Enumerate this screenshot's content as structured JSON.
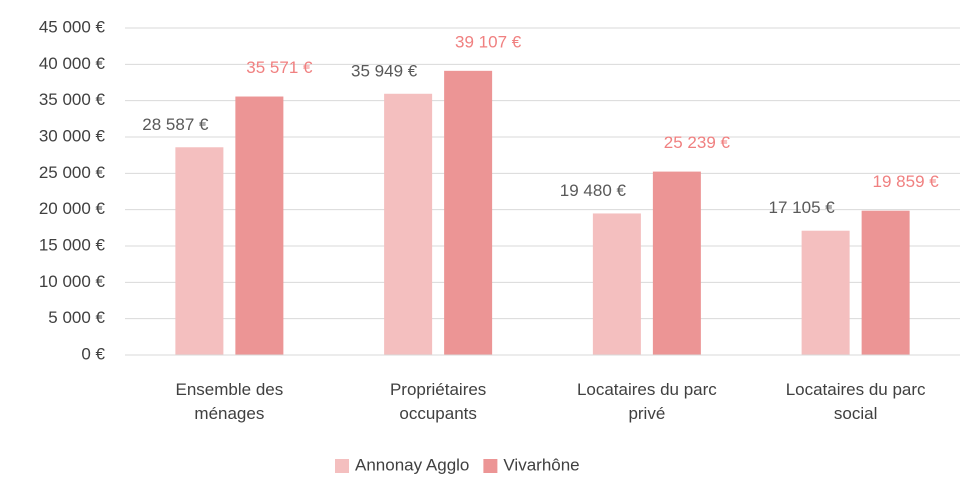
{
  "chart_data": {
    "type": "bar",
    "categories": [
      "Ensemble des ménages",
      "Propriétaires occupants",
      "Locataires du parc privé",
      "Locataires du parc social"
    ],
    "series": [
      {
        "name": "Annonay Agglo",
        "color": "#f4bfbf",
        "label_color": "#595959",
        "values": [
          28587,
          35949,
          19480,
          17105
        ],
        "value_labels": [
          "28 587 €",
          "35 949 €",
          "19 480 €",
          "17 105 €"
        ]
      },
      {
        "name": "Vivarhône",
        "color": "#ec9595",
        "label_color": "#f08080",
        "values": [
          35571,
          39107,
          25239,
          19859
        ],
        "value_labels": [
          "35 571 €",
          "39 107 €",
          "25 239 €",
          "19 859 €"
        ]
      }
    ],
    "ylim": [
      0,
      45000
    ],
    "yticks": [
      {
        "value": 0,
        "label": "0 €"
      },
      {
        "value": 5000,
        "label": "5 000 €"
      },
      {
        "value": 10000,
        "label": "10 000 €"
      },
      {
        "value": 15000,
        "label": "15 000 €"
      },
      {
        "value": 20000,
        "label": "20 000 €"
      },
      {
        "value": 25000,
        "label": "25 000 €"
      },
      {
        "value": 30000,
        "label": "30 000 €"
      },
      {
        "value": 35000,
        "label": "35 000 €"
      },
      {
        "value": 40000,
        "label": "40 000 €"
      },
      {
        "value": 45000,
        "label": "45 000 €"
      }
    ],
    "grid": true,
    "legend": "bottom"
  }
}
